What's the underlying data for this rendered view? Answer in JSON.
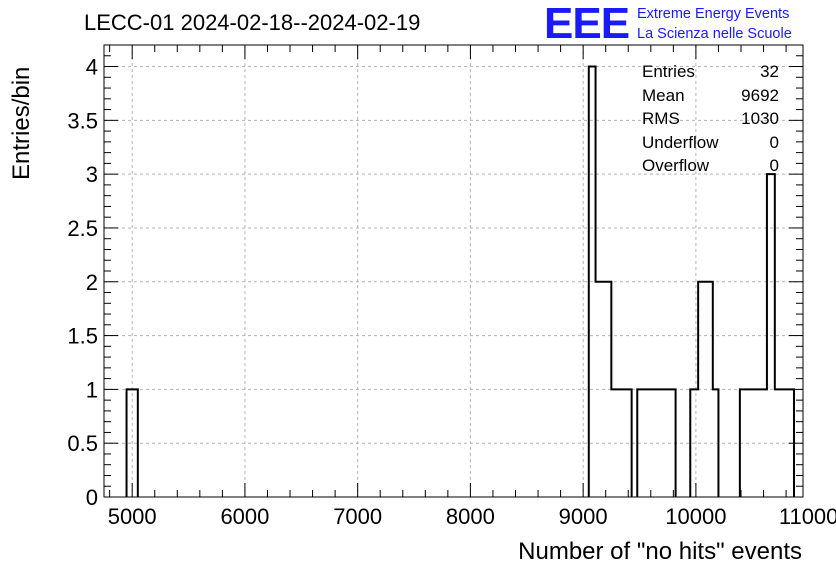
{
  "title": "LECC-01 2024-02-18--2024-02-19",
  "logo": {
    "mark": "EEE",
    "line1": "Extreme Energy Events",
    "line2": "La Scienza nelle Scuole",
    "color": "#1a1aff"
  },
  "stats": [
    {
      "label": "Entries",
      "value": "32"
    },
    {
      "label": "Mean",
      "value": "9692"
    },
    {
      "label": "RMS",
      "value": "1030"
    },
    {
      "label": "Underflow",
      "value": "0"
    },
    {
      "label": "Overflow",
      "value": "0"
    }
  ],
  "chart_data": {
    "type": "bar",
    "style": "step-histogram",
    "xlabel": "Number of \"no hits\" events",
    "ylabel": "Entries/bin",
    "xlim": [
      4750,
      10950
    ],
    "ylim": [
      0,
      4.2
    ],
    "grid": true,
    "bins": [
      {
        "x0": 4950,
        "x1": 5050,
        "count": 1
      },
      {
        "x0": 9050,
        "x1": 9110,
        "count": 4
      },
      {
        "x0": 9110,
        "x1": 9250,
        "count": 2
      },
      {
        "x0": 9250,
        "x1": 9430,
        "count": 1
      },
      {
        "x0": 9480,
        "x1": 9820,
        "count": 1
      },
      {
        "x0": 9950,
        "x1": 10020,
        "count": 1
      },
      {
        "x0": 10020,
        "x1": 10150,
        "count": 2
      },
      {
        "x0": 10150,
        "x1": 10200,
        "count": 1
      },
      {
        "x0": 10390,
        "x1": 10630,
        "count": 1
      },
      {
        "x0": 10630,
        "x1": 10700,
        "count": 3
      },
      {
        "x0": 10700,
        "x1": 10870,
        "count": 1
      }
    ],
    "xticks": [
      5000,
      6000,
      7000,
      8000,
      9000,
      10000,
      11000
    ],
    "yticks": [
      0,
      0.5,
      1,
      1.5,
      2,
      2.5,
      3,
      3.5,
      4
    ],
    "line_color": "#000000",
    "grid_color": "#b4b4b4"
  }
}
